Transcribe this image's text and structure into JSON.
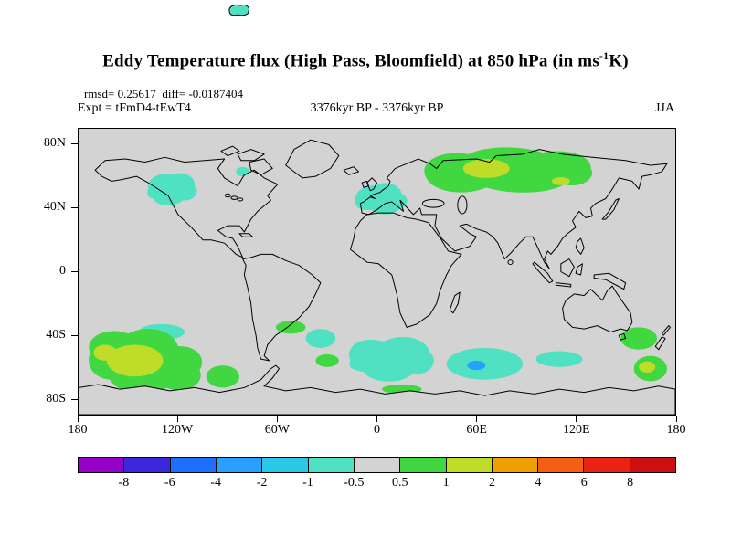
{
  "title": {
    "pre": "Eddy Temperature flux (High Pass, Bloomfield) at 850 hPa (in ms",
    "sup": "-1",
    "post": "K)"
  },
  "stats_line": "rmsd= 0.25617  diff= -0.0187404",
  "header": {
    "expt": "Expt = tFmD4-tEwT4",
    "period": "3376kyr BP - 3376kyr BP",
    "season": "JJA"
  },
  "map": {
    "background": "#d3d3d3"
  },
  "colorbar": {
    "colors": [
      "#9600c8",
      "#3c28dc",
      "#1e6eff",
      "#28a0ff",
      "#28c8e6",
      "#50e1c3",
      "#d3d3d3",
      "#41d741",
      "#bedc28",
      "#f0a000",
      "#f55f14",
      "#eb2314",
      "#cd0f0f"
    ],
    "tick_labels": [
      "-8",
      "-6",
      "-4",
      "-2",
      "-1",
      "-0.5",
      "0.5",
      "1",
      "2",
      "4",
      "6",
      "8"
    ]
  },
  "chart_data": {
    "type": "heatmap",
    "subtype": "filled-contour world map, equirectangular projection",
    "title": "Eddy Temperature flux (High Pass, Bloomfield) at 850 hPa (in ms-1K)",
    "experiment": "tFmD4-tEwT4",
    "period": "3376kyr BP - 3376kyr BP",
    "season": "JJA",
    "rmsd": 0.25617,
    "diff": -0.0187404,
    "level_hPa": 850,
    "units": "ms-1K",
    "contour_levels": [
      -8,
      -6,
      -4,
      -2,
      -1,
      -0.5,
      0.5,
      1,
      2,
      4,
      6,
      8
    ],
    "x_axis": {
      "tick_degrees": [
        -180,
        -120,
        -60,
        0,
        60,
        120,
        180
      ],
      "tick_labels": [
        "180",
        "120W",
        "60W",
        "0",
        "60E",
        "120E",
        "180"
      ],
      "range": [
        -180,
        180
      ]
    },
    "y_axis": {
      "tick_degrees": [
        80,
        40,
        0,
        -40,
        -80
      ],
      "tick_labels": [
        "80N",
        "40N",
        "0",
        "40S",
        "80S"
      ],
      "range": [
        -90,
        90
      ]
    },
    "grid": false,
    "legend_position": "bottom colorbar",
    "anomaly_regions": [
      {
        "area": "central North America / Great Lakes",
        "value_range": [
          -1,
          -0.5
        ]
      },
      {
        "area": "Labrador / Quebec small spot",
        "value_range": [
          -1,
          -0.5
        ]
      },
      {
        "area": "western Europe and Mediterranean",
        "value_range": [
          -1,
          -0.5
        ]
      },
      {
        "area": "northern Eurasia / Siberia",
        "value_range": [
          0.5,
          1
        ]
      },
      {
        "area": "central Siberia core",
        "value_range": [
          1,
          2
        ]
      },
      {
        "area": "southeast Pacific Southern Ocean",
        "value_range": [
          0.5,
          2
        ]
      },
      {
        "area": "south Pacific near 135W 50S",
        "value_range": [
          -1,
          -0.5
        ]
      },
      {
        "area": "south Atlantic near 30W 47S",
        "value_range": [
          -1,
          -0.5
        ]
      },
      {
        "area": "Southern Ocean Atlantic sector",
        "value_range": [
          -1,
          -0.5
        ]
      },
      {
        "area": "southern Indian Ocean",
        "value_range": [
          -2,
          -0.5
        ]
      },
      {
        "area": "Southern Ocean near 100E 55S",
        "value_range": [
          -1,
          -0.5
        ]
      },
      {
        "area": "south Atlantic near 50W 40S",
        "value_range": [
          0.5,
          1
        ]
      },
      {
        "area": "near New Zealand",
        "value_range": [
          0.5,
          2
        ]
      }
    ]
  }
}
